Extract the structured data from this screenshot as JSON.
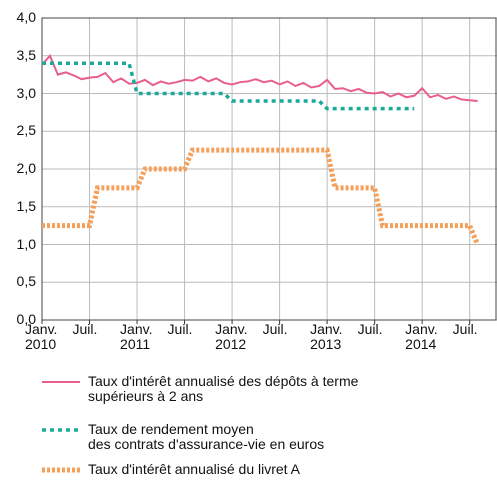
{
  "chart_data": {
    "type": "line",
    "categories": [
      "Janv.\n2010",
      null,
      null,
      null,
      null,
      null,
      "Juil.",
      null,
      null,
      null,
      null,
      null,
      "Janv.\n2011",
      null,
      null,
      null,
      null,
      null,
      "Juil.",
      null,
      null,
      null,
      null,
      null,
      "Janv.\n2012",
      null,
      null,
      null,
      null,
      null,
      "Juil.",
      null,
      null,
      null,
      null,
      null,
      "Janv.\n2013",
      null,
      null,
      null,
      null,
      null,
      "Juil.",
      null,
      null,
      null,
      null,
      null,
      "Janv.\n2014",
      null,
      null,
      null,
      null,
      null,
      "Juil.",
      null
    ],
    "series": [
      {
        "name": "Taux d'intérêt annualisé des dépôts à terme\nsupérieurs à 2 ans",
        "color": "#e8608a",
        "style": "solid",
        "values": [
          3.38,
          3.5,
          3.25,
          3.28,
          3.24,
          3.19,
          3.21,
          3.22,
          3.27,
          3.15,
          3.2,
          3.13,
          3.14,
          3.18,
          3.11,
          3.16,
          3.13,
          3.15,
          3.18,
          3.17,
          3.22,
          3.16,
          3.2,
          3.14,
          3.12,
          3.15,
          3.16,
          3.19,
          3.15,
          3.17,
          3.12,
          3.16,
          3.1,
          3.14,
          3.08,
          3.1,
          3.18,
          3.06,
          3.07,
          3.03,
          3.06,
          3.01,
          3.0,
          3.02,
          2.96,
          3.0,
          2.95,
          2.97,
          3.07,
          2.95,
          2.98,
          2.93,
          2.96,
          2.92,
          2.91,
          2.9
        ]
      },
      {
        "name": "Taux de rendement moyen\ndes contrats d'assurance-vie en euros",
        "color": "#1aa99a",
        "style": "dashed",
        "values": [
          3.4,
          3.4,
          3.4,
          3.4,
          3.4,
          3.4,
          3.4,
          3.4,
          3.4,
          3.4,
          3.4,
          3.4,
          3.0,
          3.0,
          3.0,
          3.0,
          3.0,
          3.0,
          3.0,
          3.0,
          3.0,
          3.0,
          3.0,
          3.0,
          2.9,
          2.9,
          2.9,
          2.9,
          2.9,
          2.9,
          2.9,
          2.9,
          2.9,
          2.9,
          2.9,
          2.9,
          2.8,
          2.8,
          2.8,
          2.8,
          2.8,
          2.8,
          2.8,
          2.8,
          2.8,
          2.8,
          2.8,
          2.8,
          null,
          null,
          null,
          null,
          null,
          null,
          null,
          null
        ]
      },
      {
        "name": "Taux d'intérêt annualisé du livret A",
        "color": "#f5a05a",
        "style": "dotted",
        "values": [
          1.25,
          1.25,
          1.25,
          1.25,
          1.25,
          1.25,
          1.25,
          1.75,
          1.75,
          1.75,
          1.75,
          1.75,
          1.75,
          2.0,
          2.0,
          2.0,
          2.0,
          2.0,
          2.0,
          2.25,
          2.25,
          2.25,
          2.25,
          2.25,
          2.25,
          2.25,
          2.25,
          2.25,
          2.25,
          2.25,
          2.25,
          2.25,
          2.25,
          2.25,
          2.25,
          2.25,
          2.25,
          1.75,
          1.75,
          1.75,
          1.75,
          1.75,
          1.75,
          1.25,
          1.25,
          1.25,
          1.25,
          1.25,
          1.25,
          1.25,
          1.25,
          1.25,
          1.25,
          1.25,
          1.25,
          1.0
        ]
      }
    ],
    "ylim": [
      0,
      4
    ],
    "yticks": [
      {
        "value": 0,
        "label": "0,0"
      },
      {
        "value": 0.5,
        "label": "0,5"
      },
      {
        "value": 1,
        "label": "1,0"
      },
      {
        "value": 1.5,
        "label": "1,5"
      },
      {
        "value": 2,
        "label": "2,0"
      },
      {
        "value": 2.5,
        "label": "2,5"
      },
      {
        "value": 3,
        "label": "3,0"
      },
      {
        "value": 3.5,
        "label": "3,5"
      },
      {
        "value": 4,
        "label": "4,0"
      }
    ],
    "grid": true
  }
}
